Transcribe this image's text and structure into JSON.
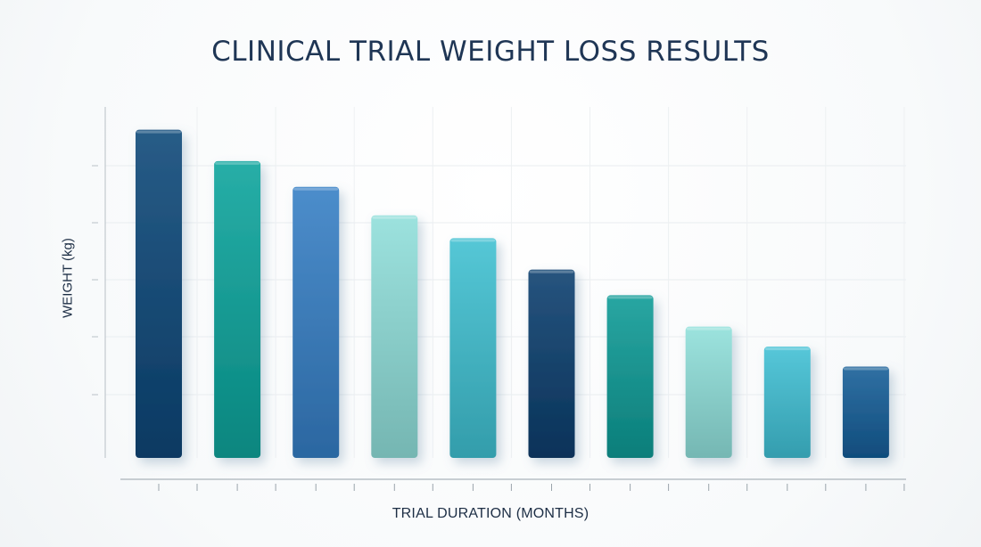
{
  "chart_data": {
    "type": "bar",
    "title": "CLINICAL TRIAL WEIGHT LOSS RESULTS",
    "xlabel": "TRIAL DURATION (MONTHS)",
    "ylabel": "WEIGHT (kg)",
    "values": [
      11.5,
      10.4,
      9.5,
      8.5,
      7.7,
      6.6,
      5.7,
      4.6,
      3.9,
      3.2
    ],
    "ylim": [
      0,
      12.3
    ],
    "grid": true,
    "colors": [
      "#0b4677",
      "#0aa39b",
      "#347ec4",
      "#8fded9",
      "#3ebfd0",
      "#0a3d6c",
      "#0c9a95",
      "#8fdfda",
      "#3fbfd4",
      "#145d97"
    ]
  }
}
